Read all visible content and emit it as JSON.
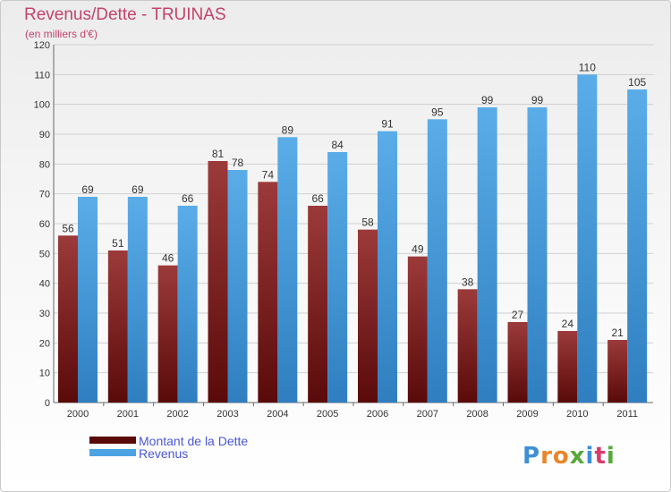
{
  "chart_data": {
    "type": "bar",
    "title": "Revenus/Dette - TRUINAS",
    "subtitle": "(en milliers d'€)",
    "categories": [
      "2000",
      "2001",
      "2002",
      "2003",
      "2004",
      "2005",
      "2006",
      "2007",
      "2008",
      "2009",
      "2010",
      "2011"
    ],
    "series": [
      {
        "name": "Montant de la Dette",
        "color": "#7a1a1a",
        "values": [
          56,
          51,
          46,
          81,
          74,
          66,
          58,
          49,
          38,
          27,
          24,
          21
        ]
      },
      {
        "name": "Revenus",
        "color": "#4ba3e3",
        "values": [
          69,
          69,
          66,
          78,
          89,
          84,
          91,
          95,
          99,
          99,
          110,
          105
        ]
      }
    ],
    "ylim": [
      0,
      120
    ],
    "yticks": [
      0,
      10,
      20,
      30,
      40,
      50,
      60,
      70,
      80,
      90,
      100,
      110,
      120
    ],
    "grid": true,
    "legend_position": "bottom-left"
  },
  "logo": {
    "text": "Proxiti",
    "letters": [
      "P",
      "r",
      "o",
      "x",
      "i",
      "t",
      "i"
    ],
    "colors": [
      "#3d8fd6",
      "#e8862a",
      "#e8862a",
      "#58a83a",
      "#3d8fd6",
      "#d83b6a",
      "#58a83a"
    ]
  }
}
